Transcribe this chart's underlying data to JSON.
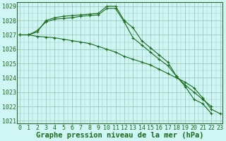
{
  "title": "Graphe pression niveau de la mer (hPa)",
  "bg_color": "#cff5f5",
  "grid_color": "#99ccbb",
  "line_color": "#1a6b1a",
  "y_ticks": [
    1021,
    1022,
    1023,
    1024,
    1025,
    1026,
    1027,
    1028,
    1029
  ],
  "x_ticks": [
    0,
    1,
    2,
    3,
    4,
    5,
    6,
    7,
    8,
    9,
    10,
    11,
    12,
    13,
    14,
    15,
    16,
    17,
    18,
    19,
    20,
    21,
    22,
    23
  ],
  "series": [
    {
      "x": [
        0,
        1,
        2,
        3,
        4,
        5,
        6,
        7,
        8,
        9,
        10,
        11,
        12,
        13,
        14,
        15,
        16,
        17,
        18,
        19,
        20,
        21,
        22
      ],
      "y": [
        1027.0,
        1027.0,
        1027.2,
        1028.0,
        1028.2,
        1028.3,
        1028.35,
        1028.4,
        1028.45,
        1028.5,
        1029.0,
        1029.0,
        1028.0,
        1027.5,
        1026.6,
        1026.1,
        1025.6,
        1025.1,
        1024.1,
        1023.4,
        1022.5,
        1022.2,
        1021.5
      ]
    },
    {
      "x": [
        0,
        1,
        2,
        3,
        4,
        5,
        6,
        7,
        8,
        9,
        10,
        11,
        12,
        13,
        14,
        15,
        16,
        17,
        18,
        19,
        20,
        21,
        22
      ],
      "y": [
        1027.0,
        1027.0,
        1027.3,
        1027.9,
        1028.1,
        1028.15,
        1028.2,
        1028.3,
        1028.35,
        1028.4,
        1028.85,
        1028.85,
        1027.9,
        1026.8,
        1026.3,
        1025.8,
        1025.3,
        1024.85,
        1024.1,
        1023.5,
        1023.0,
        1022.5,
        1022.0
      ]
    },
    {
      "x": [
        0,
        1,
        2,
        3,
        4,
        5,
        6,
        7,
        8,
        9,
        10,
        11,
        12,
        13,
        14,
        15,
        16,
        17,
        18,
        19,
        20,
        21,
        22,
        23
      ],
      "y": [
        1027.0,
        1027.0,
        1026.9,
        1026.85,
        1026.8,
        1026.7,
        1026.6,
        1026.5,
        1026.4,
        1026.2,
        1026.0,
        1025.8,
        1025.5,
        1025.3,
        1025.1,
        1024.9,
        1024.6,
        1024.3,
        1024.0,
        1023.7,
        1023.3,
        1022.6,
        1021.8,
        1021.5
      ]
    }
  ],
  "x_label_fontsize": 6.0,
  "y_label_fontsize": 6.0,
  "title_fontsize": 7.5,
  "marker_size": 2.0,
  "line_width": 0.8,
  "y_min": 1020.8,
  "y_max": 1029.3,
  "x_min": -0.3,
  "x_max": 23.3
}
